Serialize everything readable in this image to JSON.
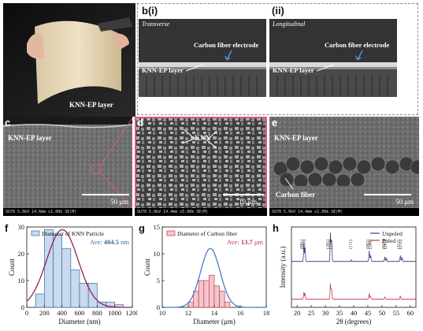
{
  "panel_labels": {
    "a": "a",
    "b": "b(i)",
    "b2": "(ii)",
    "c": "c",
    "d": "d",
    "e": "e",
    "f": "f",
    "g": "g",
    "h": "h"
  },
  "panel_a": {
    "caption": "KNN-EP layer"
  },
  "panel_b": {
    "left": {
      "orientation": "Transverse",
      "electrode": "Carbon fiber electrode",
      "layer": "KNN-EP layer"
    },
    "right": {
      "orientation": "Longitudinal",
      "electrode": "Carbon fiber electrode",
      "layer": "KNN-EP layer"
    }
  },
  "panel_c": {
    "label": "KNN-EP layer",
    "scale": "50 μm",
    "info": "SU70 5.0kV 14.6mm x1.00k SE(M)"
  },
  "panel_d": {
    "label": "KNN",
    "scale": "10 μm",
    "info": "SU70 5.0kV 14.4mm x5.00k SE(M)"
  },
  "panel_e": {
    "label1": "KNN-EP layer",
    "label2": "Carbon fiber",
    "scale": "50 μm",
    "info": "SU70 5.0kV 14.4mm x1.00k SE(M)"
  },
  "colors": {
    "knn": "#3a6ea5",
    "knn_fill": "#c9d9ee",
    "cf": "#c0394b",
    "cf_fill": "#f4c6cc",
    "fit_knn": "#8e2453",
    "fit_cf": "#4a7bc4",
    "xrd_unpoled": "#3b3b8f",
    "xrd_poled": "#c0394b"
  },
  "chart_data": [
    {
      "type": "bar",
      "legend": "Diameter of KNN Particle",
      "ave_prefix": "Ave: ",
      "ave_value": "404.5",
      "ave_unit": " nm",
      "xlabel": "Diameter (nm)",
      "ylabel": "Count",
      "xlim": [
        0,
        1200
      ],
      "ylim": [
        0,
        30
      ],
      "xticks": [
        "0",
        "200",
        "400",
        "600",
        "800",
        "1000",
        "1200"
      ],
      "yticks": [
        "0",
        "10",
        "20",
        "30"
      ],
      "bin_edges": [
        100,
        200,
        300,
        400,
        500,
        600,
        700,
        800,
        900,
        1000,
        1100
      ],
      "values": [
        5,
        29,
        27,
        22,
        14,
        9,
        9,
        2,
        2,
        1
      ],
      "fit": {
        "mean": 404.5,
        "sigma": 180,
        "peak": 29
      }
    },
    {
      "type": "bar",
      "legend": "Diameter of Carbon fiber",
      "ave_prefix": "Ave: ",
      "ave_value": "13.7",
      "ave_unit": " μm",
      "xlabel": "Diameter (μm)",
      "ylabel": "Count",
      "xlim": [
        10,
        18
      ],
      "ylim": [
        0,
        15
      ],
      "xticks": [
        "10",
        "12",
        "14",
        "16",
        "18"
      ],
      "yticks": [
        "0",
        "5",
        "10",
        "15"
      ],
      "bin_edges": [
        12.0,
        12.4,
        12.8,
        13.2,
        13.6,
        14.0,
        14.4,
        14.8,
        15.2
      ],
      "values": [
        1,
        3,
        5,
        5,
        6,
        4,
        3,
        1
      ],
      "fit": {
        "mean": 13.7,
        "sigma": 0.75,
        "peak": 11
      }
    },
    {
      "type": "line",
      "xlabel": "2θ (degrees)",
      "ylabel": "Intensity (a.u.)",
      "xlim": [
        18,
        62
      ],
      "xticks": [
        "20",
        "25",
        "30",
        "35",
        "40",
        "45",
        "50",
        "55",
        "60"
      ],
      "series": [
        {
          "name": "Unpoled",
          "peaks": [
            [
              22.4,
              0.55
            ],
            [
              22.8,
              0.45
            ],
            [
              31.8,
              1.0
            ],
            [
              32.2,
              0.8
            ],
            [
              39.2,
              0.05
            ],
            [
              45.5,
              0.35
            ],
            [
              46.0,
              0.22
            ],
            [
              51.0,
              0.15
            ],
            [
              51.6,
              0.12
            ],
            [
              56.5,
              0.2
            ],
            [
              57.1,
              0.15
            ]
          ]
        },
        {
          "name": "Poled",
          "peaks": [
            [
              22.4,
              0.35
            ],
            [
              22.8,
              0.3
            ],
            [
              31.8,
              0.85
            ],
            [
              32.2,
              0.6
            ],
            [
              45.5,
              0.3
            ],
            [
              46.0,
              0.15
            ],
            [
              51.0,
              0.12
            ],
            [
              56.5,
              0.18
            ]
          ]
        }
      ],
      "peak_labels": [
        {
          "x": 22.0,
          "text": "(001)"
        },
        {
          "x": 22.9,
          "text": "(100)"
        },
        {
          "x": 31.2,
          "text": "(101)"
        },
        {
          "x": 32.2,
          "text": "(110)"
        },
        {
          "x": 39.3,
          "text": "(111)"
        },
        {
          "x": 45.4,
          "text": "(002)"
        },
        {
          "x": 46.2,
          "text": "(200)"
        },
        {
          "x": 51.0,
          "text": "(021)"
        },
        {
          "x": 51.6,
          "text": "(201)"
        },
        {
          "x": 56.3,
          "text": "(112)"
        },
        {
          "x": 57.0,
          "text": "(211)"
        }
      ]
    }
  ]
}
